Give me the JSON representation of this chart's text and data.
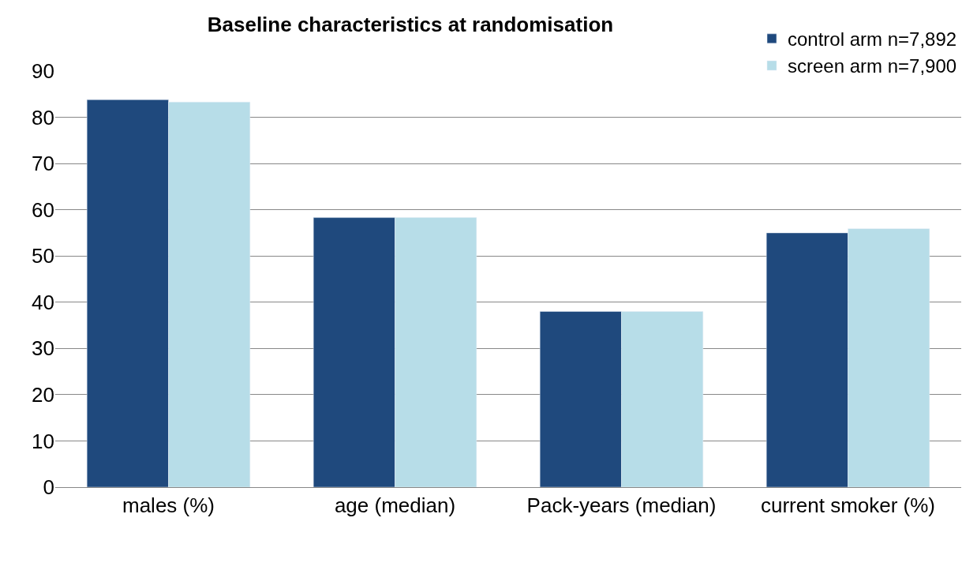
{
  "chart_data": {
    "type": "bar",
    "title": "Baseline characteristics at randomisation",
    "categories": [
      "males (%)",
      "age (median)",
      "Pack-years (median)",
      "current smoker (%)"
    ],
    "series": [
      {
        "name": "control arm n=7,892",
        "color": "#1f497d",
        "values": [
          83.8,
          58.3,
          38.0,
          55.0
        ]
      },
      {
        "name": "screen arm n=7,900",
        "color": "#b7dde8",
        "values": [
          83.3,
          58.3,
          38.0,
          55.9
        ]
      }
    ],
    "ylim": [
      0,
      90
    ],
    "yticks": [
      0,
      10,
      20,
      30,
      40,
      50,
      60,
      70,
      80,
      90
    ],
    "grid": "y",
    "legend": "top right"
  }
}
